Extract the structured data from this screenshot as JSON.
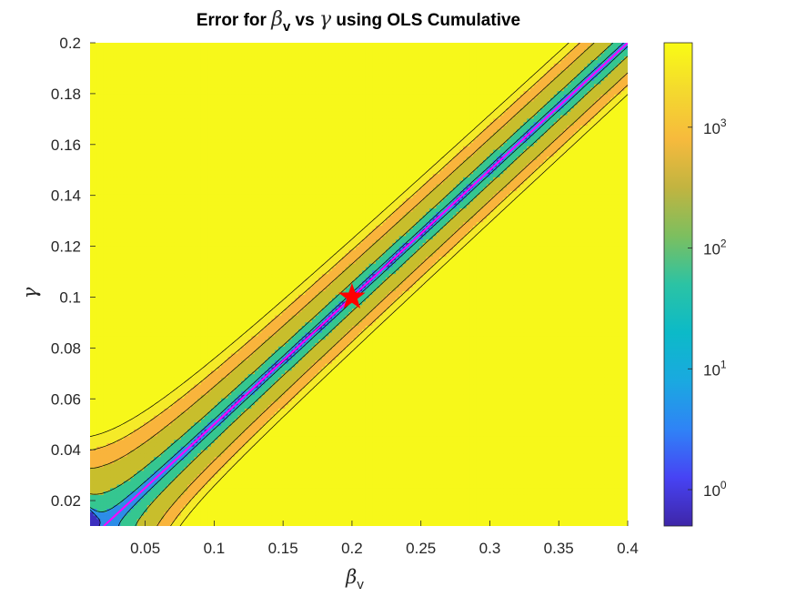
{
  "chart_data": {
    "type": "heatmap",
    "title_parts": [
      "Error for ",
      "β",
      "v",
      " vs ",
      "γ",
      " using OLS Cumulative"
    ],
    "xlabel_main": "β",
    "xlabel_sub": "v",
    "ylabel": "γ",
    "xlim": [
      0.01,
      0.4
    ],
    "ylim": [
      0.01,
      0.2
    ],
    "x_ticks": [
      0.05,
      0.1,
      0.15,
      0.2,
      0.25,
      0.3,
      0.35,
      0.4
    ],
    "x_tick_labels": [
      "0.05",
      "0.1",
      "0.15",
      "0.2",
      "0.25",
      "0.3",
      "0.35",
      "0.4"
    ],
    "y_ticks": [
      0.02,
      0.04,
      0.06,
      0.08,
      0.1,
      0.12,
      0.14,
      0.16,
      0.18,
      0.2
    ],
    "y_tick_labels": [
      "0.02",
      "0.04",
      "0.06",
      "0.08",
      "0.1",
      "0.12",
      "0.14",
      "0.16",
      "0.18",
      "0.2"
    ],
    "colorbar": {
      "scale": "log",
      "range": [
        0.5,
        5000
      ],
      "ticks": [
        1,
        10,
        100,
        1000
      ],
      "tick_base": "10",
      "tick_exponents": [
        "0",
        "1",
        "2",
        "3"
      ]
    },
    "minimum_marker": {
      "x": 0.2,
      "y": 0.1,
      "color": "#ff0000",
      "shape": "star"
    },
    "reference_line": {
      "x": [
        0.02,
        0.4
      ],
      "y": [
        0.01,
        0.2
      ],
      "color": "#ff00ff"
    },
    "contour_levels": [
      3,
      30,
      300,
      1500,
      3000,
      4500
    ],
    "colors": {
      "band_0": "#3c2fbf",
      "band_1": "#2d8de8",
      "band_2": "#35c690",
      "band_3": "#c8be2c",
      "band_4": "#f9b43c",
      "band_5": "#f1dc2f",
      "band_6": "#f5ea28",
      "band_7": "#f7f81a"
    }
  }
}
